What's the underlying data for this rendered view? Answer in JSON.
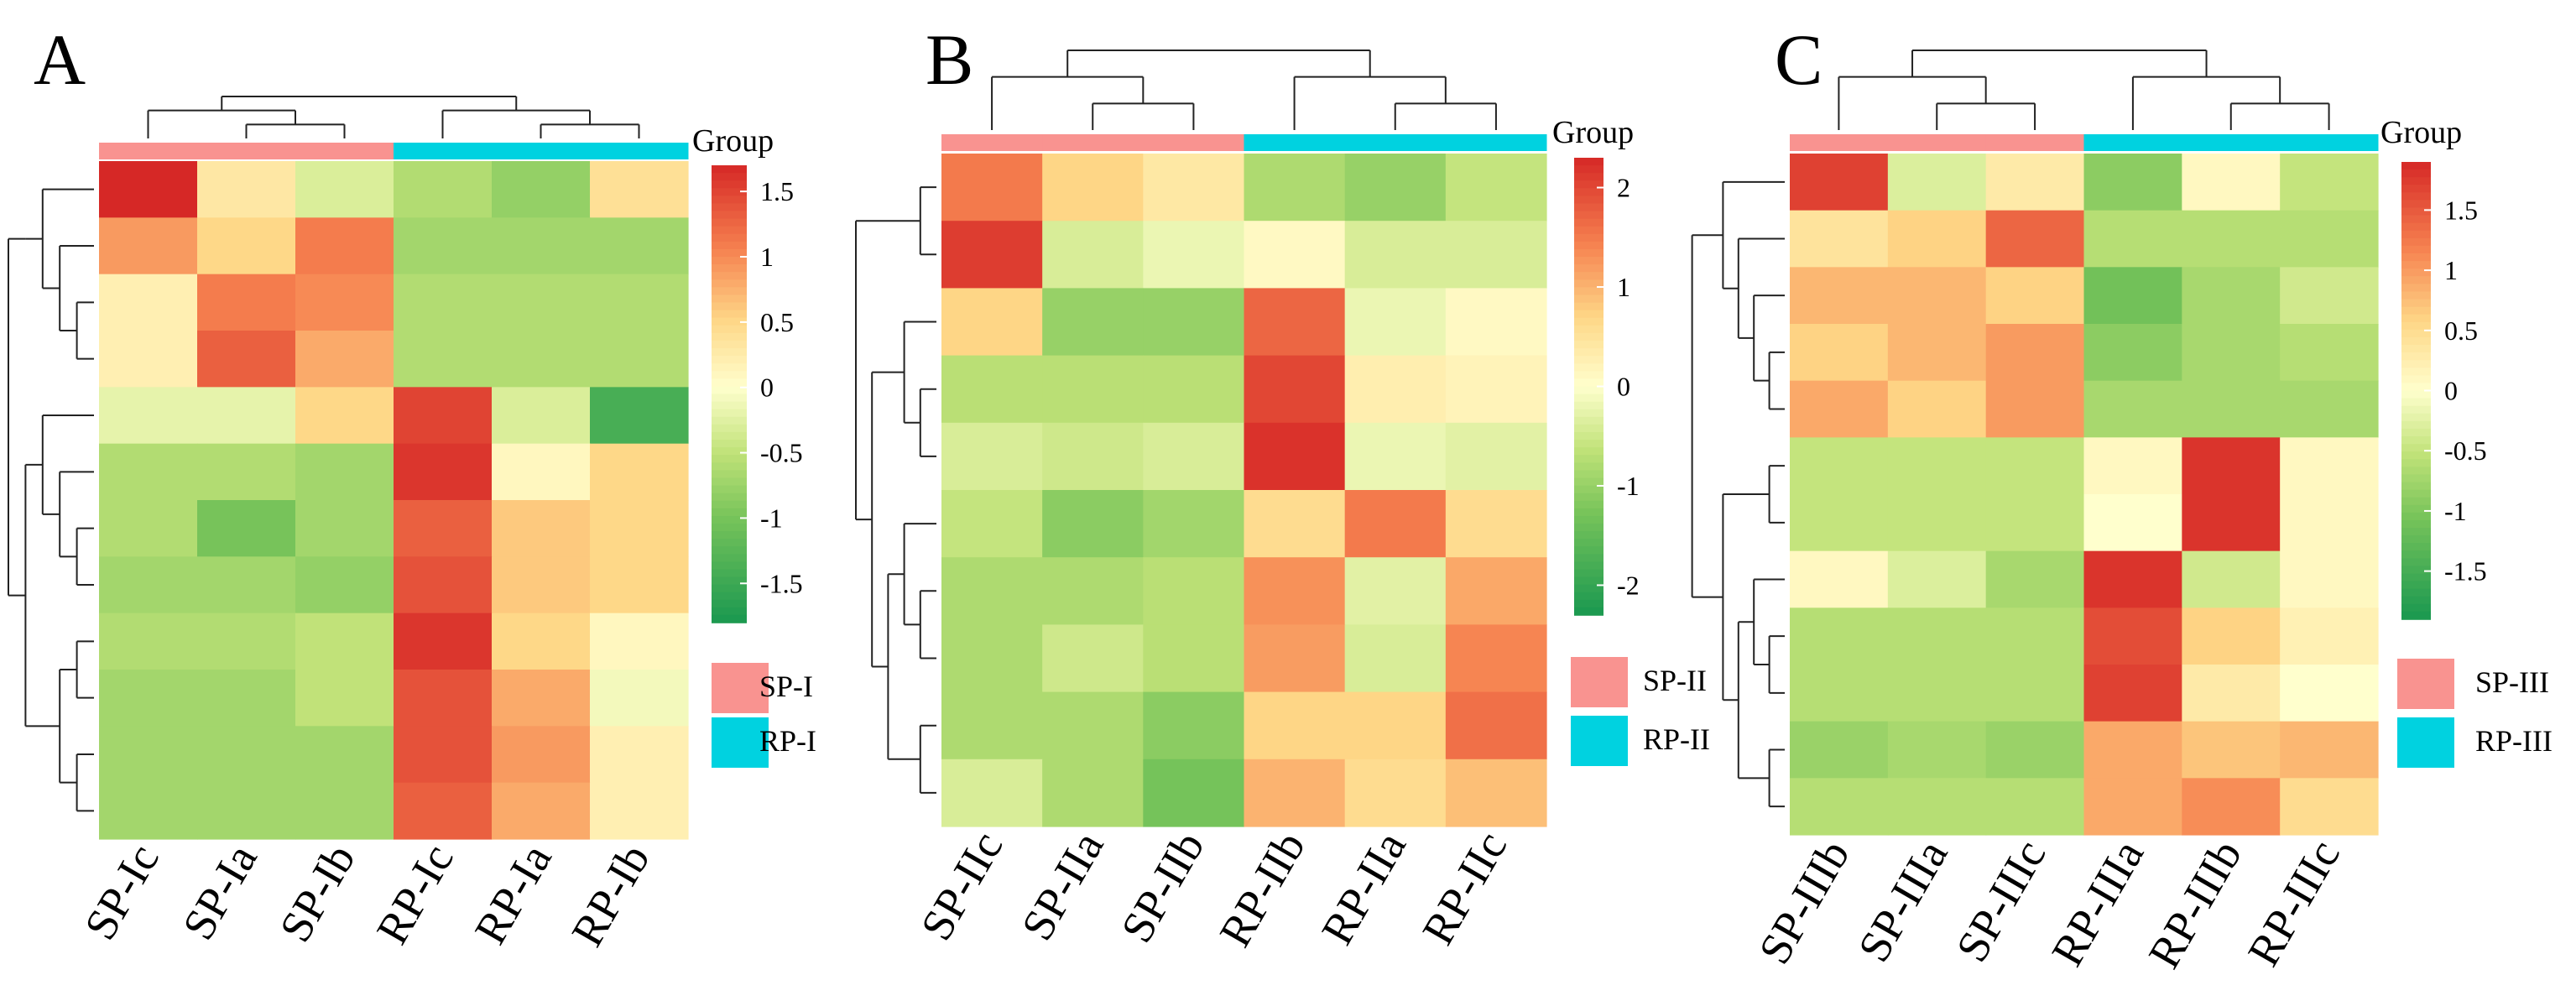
{
  "figure": {
    "group_label": "Group"
  },
  "chart_data": [
    {
      "type": "heatmap",
      "panel_label": "A",
      "columns": [
        "SP-Ic",
        "SP-Ia",
        "SP-Ib",
        "RP-Ic",
        "RP-Ia",
        "RP-Ib"
      ],
      "column_groups": [
        "SP-I",
        "SP-I",
        "SP-I",
        "RP-I",
        "RP-I",
        "RP-I"
      ],
      "legend": [
        {
          "label": "SP-I",
          "color": "#f99390"
        },
        {
          "label": "RP-I",
          "color": "#00d2e0"
        }
      ],
      "scale": {
        "min": -1.8,
        "max": 1.7,
        "ticks": [
          1.5,
          1,
          0.5,
          0,
          -0.5,
          -1,
          -1.5
        ],
        "tick_labels": [
          "1.5",
          "1",
          "0.5",
          "0",
          "-0.5",
          "-1",
          "-1.5"
        ]
      },
      "values": [
        [
          1.7,
          0.3,
          -0.3,
          -0.6,
          -0.8,
          0.4
        ],
        [
          0.9,
          0.5,
          1.1,
          -0.7,
          -0.7,
          -0.7
        ],
        [
          0.2,
          1.1,
          1.0,
          -0.6,
          -0.6,
          -0.6
        ],
        [
          0.2,
          1.3,
          0.8,
          -0.6,
          -0.6,
          -0.6
        ],
        [
          -0.2,
          -0.2,
          0.5,
          1.5,
          -0.3,
          -1.4
        ],
        [
          -0.6,
          -0.6,
          -0.7,
          1.6,
          0.1,
          0.5
        ],
        [
          -0.6,
          -1.0,
          -0.7,
          1.3,
          0.6,
          0.5
        ],
        [
          -0.7,
          -0.7,
          -0.8,
          1.4,
          0.6,
          0.5
        ],
        [
          -0.6,
          -0.6,
          -0.5,
          1.6,
          0.5,
          0.1
        ],
        [
          -0.7,
          -0.7,
          -0.5,
          1.4,
          0.8,
          -0.1
        ],
        [
          -0.7,
          -0.7,
          -0.7,
          1.4,
          0.9,
          0.2
        ],
        [
          -0.7,
          -0.7,
          -0.7,
          1.3,
          0.8,
          0.2
        ]
      ]
    },
    {
      "type": "heatmap",
      "panel_label": "B",
      "columns": [
        "SP-IIc",
        "SP-IIa",
        "SP-IIb",
        "RP-IIb",
        "RP-IIa",
        "RP-IIc"
      ],
      "column_groups": [
        "SP-II",
        "SP-II",
        "SP-II",
        "RP-II",
        "RP-II",
        "RP-II"
      ],
      "legend": [
        {
          "label": "SP-II",
          "color": "#f99390"
        },
        {
          "label": "RP-II",
          "color": "#00d2e0"
        }
      ],
      "scale": {
        "min": -2.3,
        "max": 2.3,
        "ticks": [
          2,
          1,
          0,
          -1,
          -2
        ],
        "tick_labels": [
          "2",
          "1",
          "0",
          "-1",
          "-2"
        ]
      },
      "values": [
        [
          1.5,
          0.7,
          0.4,
          -0.8,
          -1.0,
          -0.6
        ],
        [
          2.1,
          -0.4,
          -0.2,
          0.1,
          -0.4,
          -0.4
        ],
        [
          0.7,
          -1.0,
          -1.0,
          1.7,
          -0.2,
          0.1
        ],
        [
          -0.7,
          -0.7,
          -0.7,
          2.0,
          0.3,
          0.2
        ],
        [
          -0.4,
          -0.5,
          -0.4,
          2.2,
          -0.2,
          -0.3
        ],
        [
          -0.6,
          -1.1,
          -0.9,
          0.6,
          1.5,
          0.6
        ],
        [
          -0.8,
          -0.8,
          -0.7,
          1.3,
          -0.3,
          1.1
        ],
        [
          -0.8,
          -0.5,
          -0.7,
          1.2,
          -0.4,
          1.4
        ],
        [
          -0.8,
          -0.8,
          -1.1,
          0.7,
          0.7,
          1.6
        ],
        [
          -0.4,
          -0.8,
          -1.3,
          1.0,
          0.6,
          0.9
        ]
      ]
    },
    {
      "type": "heatmap",
      "panel_label": "C",
      "columns": [
        "SP-IIIb",
        "SP-IIIa",
        "SP-IIIc",
        "RP-IIIa",
        "RP-IIIb",
        "RP-IIIc"
      ],
      "column_groups": [
        "SP-III",
        "SP-III",
        "SP-III",
        "RP-III",
        "RP-III",
        "RP-III"
      ],
      "legend": [
        {
          "label": "SP-III",
          "color": "#f99390"
        },
        {
          "label": "RP-III",
          "color": "#00d2e0"
        }
      ],
      "scale": {
        "min": -1.9,
        "max": 1.9,
        "ticks": [
          1.5,
          1,
          0.5,
          0,
          -0.5,
          -1,
          -1.5
        ],
        "tick_labels": [
          "1.5",
          "1",
          "0.5",
          "0",
          "-0.5",
          "-1",
          "-1.5"
        ]
      },
      "values": [
        [
          1.7,
          -0.3,
          0.3,
          -0.9,
          0.1,
          -0.5
        ],
        [
          0.4,
          0.6,
          1.4,
          -0.6,
          -0.6,
          -0.6
        ],
        [
          0.8,
          0.8,
          0.6,
          -1.1,
          -0.7,
          -0.4
        ],
        [
          0.6,
          0.8,
          1.0,
          -0.9,
          -0.7,
          -0.6
        ],
        [
          0.9,
          0.6,
          1.0,
          -0.7,
          -0.7,
          -0.7
        ],
        [
          -0.5,
          -0.5,
          -0.5,
          0.1,
          1.8,
          0.1
        ],
        [
          -0.5,
          -0.5,
          -0.5,
          0.0,
          1.8,
          0.1
        ],
        [
          0.1,
          -0.3,
          -0.7,
          1.8,
          -0.4,
          0.1
        ],
        [
          -0.6,
          -0.6,
          -0.6,
          1.6,
          0.6,
          0.2
        ],
        [
          -0.6,
          -0.6,
          -0.6,
          1.7,
          0.3,
          0.0
        ],
        [
          -0.8,
          -0.7,
          -0.8,
          0.9,
          0.7,
          0.8
        ],
        [
          -0.6,
          -0.6,
          -0.6,
          0.9,
          1.1,
          0.5
        ]
      ]
    }
  ]
}
